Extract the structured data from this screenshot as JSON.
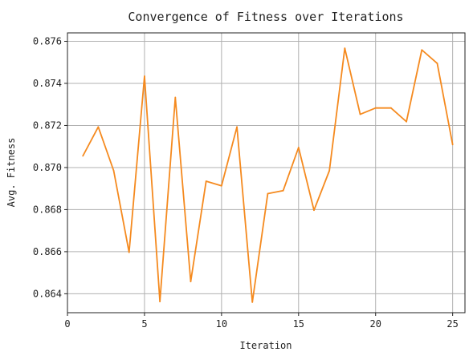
{
  "chart_data": {
    "type": "line",
    "title": "Convergence of Fitness over Iterations",
    "xlabel": "Iteration",
    "ylabel": "Avg. Fitness",
    "xlim": [
      0,
      25.8
    ],
    "ylim": [
      0.8631,
      0.8764
    ],
    "xticks": [
      0,
      5,
      10,
      15,
      20,
      25
    ],
    "xtick_labels": [
      "0",
      "5",
      "10",
      "15",
      "20",
      "25"
    ],
    "yticks": [
      0.864,
      0.866,
      0.868,
      0.87,
      0.872,
      0.874,
      0.876
    ],
    "ytick_labels": [
      "0.864",
      "0.866",
      "0.868",
      "0.870",
      "0.872",
      "0.874",
      "0.876"
    ],
    "grid": true,
    "line_color": "#f58a1f",
    "grid_color": "#b0b0b0",
    "series": [
      {
        "x": [
          1,
          2,
          3,
          4,
          5,
          6,
          7,
          8,
          9,
          10,
          11,
          12,
          13,
          14,
          15,
          16,
          17,
          18,
          19,
          20,
          21,
          22,
          23,
          24,
          25
        ],
        "values": [
          0.87055,
          0.87193,
          0.86985,
          0.86597,
          0.87434,
          0.86363,
          0.87333,
          0.86458,
          0.86935,
          0.86913,
          0.87193,
          0.8636,
          0.86876,
          0.8689,
          0.87095,
          0.86797,
          0.86985,
          0.87567,
          0.87253,
          0.87283,
          0.87283,
          0.87218,
          0.87559,
          0.87495,
          0.87109
        ]
      }
    ]
  }
}
